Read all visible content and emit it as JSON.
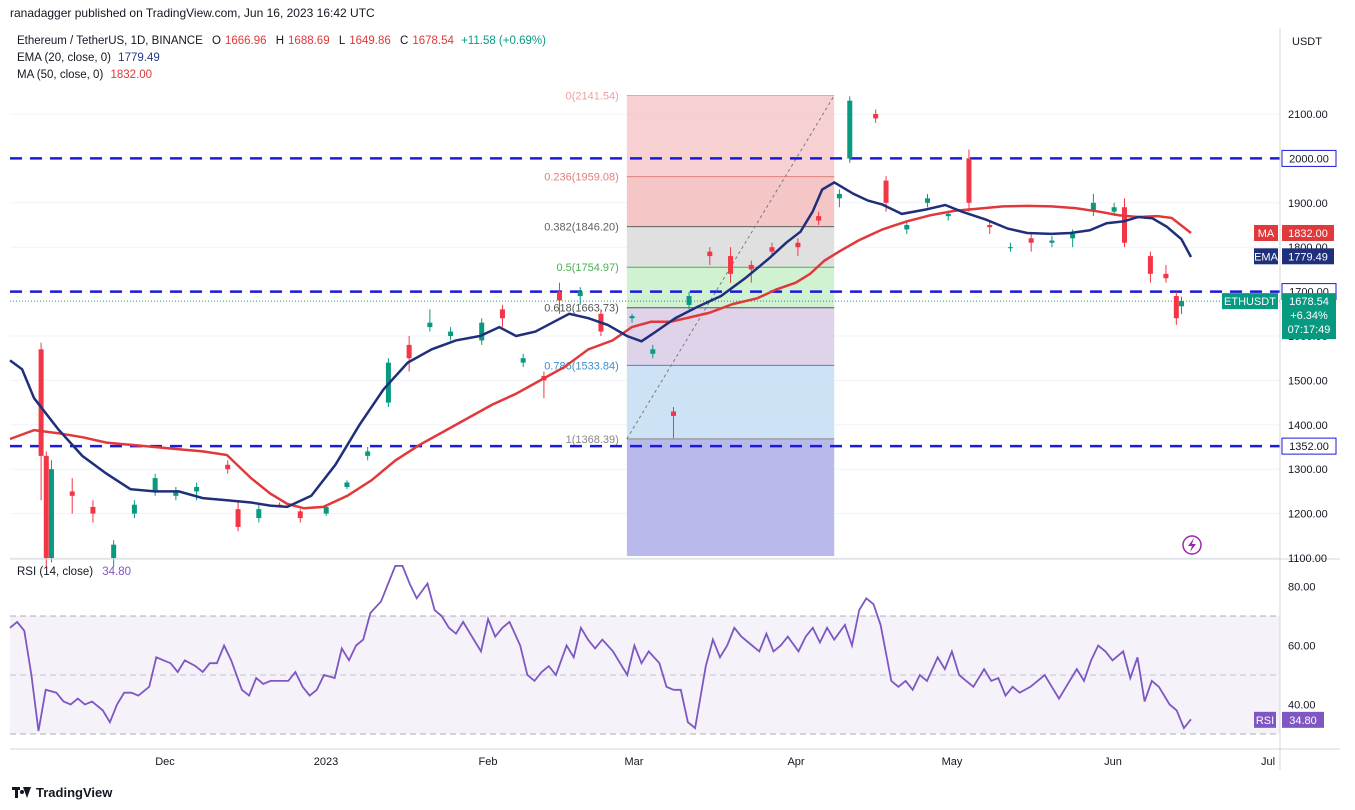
{
  "header": {
    "published": "ranadagger published on TradingView.com, Jun 16, 2023 16:42 UTC"
  },
  "legend": {
    "symbol": "Ethereum / TetherUS, 1D, BINANCE",
    "o": "1666.96",
    "h": "1688.69",
    "l": "1649.86",
    "c": "1678.54",
    "change": "+11.58 (+0.69%)",
    "ema_label": "EMA (20, close, 0)",
    "ema_value": "1779.49",
    "ma_label": "MA (50, close, 0)",
    "ma_value": "1832.00"
  },
  "price_axis": {
    "unit": "USDT",
    "ticks": [
      "1100.00",
      "1200.00",
      "1300.00",
      "1400.00",
      "1500.00",
      "1600.00",
      "1700.00",
      "1800.00",
      "1900.00",
      "2000.00",
      "2100.00"
    ],
    "tick_values": [
      1100,
      1200,
      1300,
      1400,
      1500,
      1600,
      1700,
      1800,
      1900,
      2000,
      2100
    ],
    "badges": [
      {
        "text": "2000.00",
        "value": 2000,
        "color": "#ffffff",
        "bg": "#ffffff",
        "fg": "#131722",
        "kind": "level"
      },
      {
        "text": "1832.00",
        "label": "MA",
        "value": 1832,
        "bg": "#e0383b",
        "fg": "#ffffff",
        "kind": "ind"
      },
      {
        "text": "1779.49",
        "label": "EMA",
        "value": 1779.49,
        "bg": "#1f2f7a",
        "fg": "#ffffff",
        "kind": "ind"
      },
      {
        "text": "1700.00",
        "value": 1700,
        "bg": "#ffffff",
        "fg": "#131722",
        "kind": "level"
      },
      {
        "text": "1352.00",
        "value": 1352,
        "bg": "#ffffff",
        "fg": "#131722",
        "kind": "level"
      }
    ],
    "last": {
      "label": "ETHUSDT",
      "price": "1678.54",
      "pct": "+6.34%",
      "countdown": "07:17:49",
      "bg": "#089981"
    }
  },
  "time_axis": {
    "labels": [
      "Dec",
      "2023",
      "Feb",
      "Mar",
      "Apr",
      "May",
      "Jun",
      "Jul"
    ]
  },
  "rsi": {
    "label": "RSI (14, close)",
    "value": "34.80",
    "ticks": [
      "40.00",
      "60.00",
      "80.00"
    ],
    "tick_values": [
      40,
      60,
      80
    ],
    "band_upper": 70,
    "band_lower": 30,
    "mid": 50,
    "color": "#7e57c2",
    "values": [
      66,
      68,
      65,
      50,
      31,
      45,
      44,
      41,
      40,
      42,
      40,
      41,
      38,
      34,
      40,
      44,
      44,
      43,
      46,
      56,
      55,
      54,
      51,
      55,
      53,
      51,
      54,
      54,
      60,
      55,
      45,
      43,
      49,
      47,
      48,
      48,
      48,
      51,
      46,
      43,
      45,
      50,
      49,
      59,
      55,
      60,
      62,
      71,
      75,
      81,
      87,
      87,
      81,
      76,
      81,
      72,
      70,
      66,
      64,
      68,
      62,
      58,
      69,
      63,
      66,
      68,
      60,
      50,
      48,
      51,
      53,
      50,
      60,
      56,
      66,
      62,
      59,
      62,
      58,
      54,
      50,
      60,
      54,
      58,
      54,
      46,
      45,
      45,
      34,
      32,
      53,
      62,
      56,
      60,
      66,
      63,
      60,
      58,
      64,
      58,
      60,
      63,
      58,
      63,
      66,
      61,
      66,
      62,
      67,
      60,
      72,
      76,
      74,
      67,
      48,
      46,
      48,
      45,
      50,
      48,
      56,
      52,
      58,
      50,
      48,
      46,
      52,
      48,
      49,
      43,
      46,
      44,
      46,
      48,
      50,
      46,
      42,
      46,
      52,
      48,
      55,
      60,
      58,
      55,
      58,
      49,
      56,
      41,
      48,
      46,
      40,
      38,
      32,
      35
    ],
    "index_map": [
      0,
      2,
      4,
      6,
      8,
      10,
      13,
      15,
      17,
      19,
      21,
      23,
      26,
      28,
      30,
      32,
      34,
      36,
      39,
      41,
      43,
      45,
      47,
      49,
      52,
      54,
      56,
      58,
      60,
      62,
      65,
      67,
      69,
      71,
      73,
      75,
      78,
      80,
      82,
      84,
      86,
      88,
      91,
      93,
      95,
      97,
      99,
      101,
      104,
      106,
      108,
      110,
      112,
      114,
      117,
      119,
      121,
      123,
      125,
      127,
      130,
      132,
      134,
      136,
      138,
      140,
      143,
      145,
      147,
      149,
      151,
      153,
      156,
      158,
      160,
      162,
      164,
      166,
      169,
      171,
      173,
      175,
      177,
      179,
      182,
      184,
      186,
      188,
      190,
      192,
      195,
      197,
      199,
      201,
      203,
      205,
      208,
      210,
      212,
      214,
      216,
      218,
      221,
      223,
      225,
      227,
      229,
      231,
      234,
      236,
      238,
      240,
      242,
      244,
      247,
      249,
      251,
      253,
      255,
      257,
      260,
      262,
      264,
      266,
      268,
      270,
      273,
      275,
      277,
      279,
      281,
      283,
      286,
      288,
      290,
      292,
      294,
      296,
      299,
      301,
      303,
      305,
      307,
      309,
      312,
      314,
      316,
      318,
      320,
      322,
      325,
      327,
      329,
      331
    ]
  },
  "chart_data": {
    "type": "candlestick",
    "symbol": "Ethereum / TetherUS",
    "interval": "1D",
    "ylim": [
      1030,
      2160
    ],
    "x_range": [
      "2022-11-02",
      "2023-07-05"
    ],
    "candles": [
      [
        "2022-11-08",
        1570,
        1585,
        1230,
        1330
      ],
      [
        "2022-11-09",
        1330,
        1340,
        1080,
        1100
      ],
      [
        "2022-11-10",
        1100,
        1320,
        1090,
        1300
      ],
      [
        "2022-11-14",
        1250,
        1280,
        1200,
        1240
      ],
      [
        "2022-11-18",
        1215,
        1230,
        1180,
        1200
      ],
      [
        "2022-11-22",
        1100,
        1140,
        1080,
        1130
      ],
      [
        "2022-11-26",
        1200,
        1230,
        1190,
        1220
      ],
      [
        "2022-11-30",
        1250,
        1290,
        1240,
        1280
      ],
      [
        "2022-12-04",
        1240,
        1260,
        1230,
        1250
      ],
      [
        "2022-12-08",
        1250,
        1270,
        1230,
        1260
      ],
      [
        "2022-12-14",
        1310,
        1320,
        1290,
        1300
      ],
      [
        "2022-12-16",
        1210,
        1230,
        1160,
        1170
      ],
      [
        "2022-12-20",
        1190,
        1220,
        1180,
        1210
      ],
      [
        "2022-12-24",
        1220,
        1225,
        1215,
        1218
      ],
      [
        "2022-12-28",
        1205,
        1210,
        1180,
        1190
      ],
      [
        "2023-01-02",
        1200,
        1220,
        1195,
        1215
      ],
      [
        "2023-01-06",
        1260,
        1275,
        1255,
        1270
      ],
      [
        "2023-01-10",
        1330,
        1350,
        1320,
        1340
      ],
      [
        "2023-01-14",
        1450,
        1550,
        1440,
        1540
      ],
      [
        "2023-01-18",
        1580,
        1600,
        1520,
        1550
      ],
      [
        "2023-01-22",
        1620,
        1660,
        1610,
        1630
      ],
      [
        "2023-01-26",
        1600,
        1620,
        1590,
        1610
      ],
      [
        "2023-02-01",
        1590,
        1640,
        1580,
        1630
      ],
      [
        "2023-02-05",
        1660,
        1670,
        1620,
        1640
      ],
      [
        "2023-02-09",
        1540,
        1560,
        1530,
        1550
      ],
      [
        "2023-02-13",
        1510,
        1520,
        1460,
        1500
      ],
      [
        "2023-02-16",
        1700,
        1720,
        1650,
        1680
      ],
      [
        "2023-02-20",
        1690,
        1710,
        1670,
        1700
      ],
      [
        "2023-02-24",
        1650,
        1660,
        1600,
        1610
      ],
      [
        "2023-03-02",
        1640,
        1650,
        1630,
        1645
      ],
      [
        "2023-03-06",
        1560,
        1580,
        1550,
        1570
      ],
      [
        "2023-03-10",
        1430,
        1440,
        1370,
        1420
      ],
      [
        "2023-03-13",
        1670,
        1700,
        1660,
        1690
      ],
      [
        "2023-03-17",
        1790,
        1800,
        1760,
        1780
      ],
      [
        "2023-03-21",
        1780,
        1800,
        1720,
        1740
      ],
      [
        "2023-03-25",
        1760,
        1770,
        1720,
        1750
      ],
      [
        "2023-03-29",
        1800,
        1810,
        1780,
        1790
      ],
      [
        "2023-04-03",
        1810,
        1820,
        1780,
        1800
      ],
      [
        "2023-04-07",
        1870,
        1880,
        1850,
        1860
      ],
      [
        "2023-04-11",
        1910,
        1930,
        1890,
        1920
      ],
      [
        "2023-04-13",
        2000,
        2140,
        1990,
        2130
      ],
      [
        "2023-04-18",
        2100,
        2110,
        2080,
        2090
      ],
      [
        "2023-04-20",
        1950,
        1960,
        1880,
        1900
      ],
      [
        "2023-04-24",
        1840,
        1860,
        1830,
        1850
      ],
      [
        "2023-04-28",
        1900,
        1920,
        1890,
        1910
      ],
      [
        "2023-05-02",
        1870,
        1880,
        1860,
        1875
      ],
      [
        "2023-05-06",
        2000,
        2020,
        1880,
        1900
      ],
      [
        "2023-05-10",
        1850,
        1860,
        1830,
        1845
      ],
      [
        "2023-05-14",
        1800,
        1810,
        1790,
        1800
      ],
      [
        "2023-05-18",
        1820,
        1830,
        1790,
        1810
      ],
      [
        "2023-05-22",
        1810,
        1825,
        1800,
        1815
      ],
      [
        "2023-05-26",
        1820,
        1840,
        1800,
        1830
      ],
      [
        "2023-05-30",
        1880,
        1920,
        1870,
        1900
      ],
      [
        "2023-06-03",
        1880,
        1900,
        1870,
        1890
      ],
      [
        "2023-06-05",
        1890,
        1910,
        1800,
        1810
      ],
      [
        "2023-06-10",
        1780,
        1790,
        1720,
        1740
      ],
      [
        "2023-06-13",
        1740,
        1760,
        1720,
        1730
      ],
      [
        "2023-06-15",
        1690,
        1700,
        1625,
        1640
      ],
      [
        "2023-06-16",
        1666.96,
        1688.69,
        1649.86,
        1678.54
      ]
    ],
    "ema20": [
      [
        0,
        1545
      ],
      [
        5,
        1525
      ],
      [
        10,
        1460
      ],
      [
        20,
        1390
      ],
      [
        30,
        1330
      ],
      [
        40,
        1290
      ],
      [
        50,
        1255
      ],
      [
        60,
        1250
      ],
      [
        70,
        1250
      ],
      [
        80,
        1235
      ],
      [
        90,
        1230
      ],
      [
        100,
        1225
      ],
      [
        108,
        1218
      ],
      [
        115,
        1215
      ],
      [
        125,
        1240
      ],
      [
        135,
        1310
      ],
      [
        145,
        1400
      ],
      [
        155,
        1480
      ],
      [
        165,
        1540
      ],
      [
        175,
        1570
      ],
      [
        185,
        1590
      ],
      [
        195,
        1600
      ],
      [
        203,
        1620
      ],
      [
        210,
        1600
      ],
      [
        218,
        1610
      ],
      [
        225,
        1630
      ],
      [
        232,
        1650
      ],
      [
        240,
        1640
      ],
      [
        248,
        1625
      ],
      [
        256,
        1600
      ],
      [
        262,
        1588
      ],
      [
        268,
        1610
      ],
      [
        276,
        1640
      ],
      [
        285,
        1665
      ],
      [
        295,
        1690
      ],
      [
        305,
        1730
      ],
      [
        315,
        1775
      ],
      [
        322,
        1810
      ],
      [
        328,
        1835
      ],
      [
        333,
        1880
      ],
      [
        337,
        1930
      ],
      [
        342,
        1946
      ],
      [
        350,
        1920
      ],
      [
        356,
        1905
      ],
      [
        362,
        1896
      ],
      [
        370,
        1875
      ],
      [
        380,
        1885
      ],
      [
        388,
        1895
      ],
      [
        395,
        1880
      ],
      [
        405,
        1862
      ],
      [
        414,
        1842
      ],
      [
        422,
        1832
      ],
      [
        432,
        1830
      ],
      [
        440,
        1832
      ],
      [
        448,
        1838
      ],
      [
        455,
        1854
      ],
      [
        462,
        1858
      ],
      [
        468,
        1868
      ],
      [
        474,
        1865
      ],
      [
        480,
        1846
      ],
      [
        486,
        1818
      ],
      [
        490,
        1778
      ]
    ],
    "ma50": [
      [
        0,
        1368
      ],
      [
        10,
        1388
      ],
      [
        20,
        1381
      ],
      [
        30,
        1372
      ],
      [
        40,
        1360
      ],
      [
        50,
        1355
      ],
      [
        60,
        1350
      ],
      [
        70,
        1345
      ],
      [
        80,
        1340
      ],
      [
        90,
        1332
      ],
      [
        100,
        1280
      ],
      [
        108,
        1245
      ],
      [
        115,
        1222
      ],
      [
        122,
        1212
      ],
      [
        130,
        1215
      ],
      [
        140,
        1240
      ],
      [
        150,
        1275
      ],
      [
        160,
        1320
      ],
      [
        170,
        1355
      ],
      [
        180,
        1385
      ],
      [
        190,
        1415
      ],
      [
        200,
        1445
      ],
      [
        210,
        1470
      ],
      [
        220,
        1500
      ],
      [
        230,
        1530
      ],
      [
        240,
        1570
      ],
      [
        250,
        1590
      ],
      [
        258,
        1620
      ],
      [
        266,
        1632
      ],
      [
        274,
        1632
      ],
      [
        282,
        1642
      ],
      [
        290,
        1652
      ],
      [
        300,
        1672
      ],
      [
        310,
        1685
      ],
      [
        318,
        1705
      ],
      [
        326,
        1720
      ],
      [
        332,
        1740
      ],
      [
        338,
        1770
      ],
      [
        344,
        1790
      ],
      [
        352,
        1815
      ],
      [
        362,
        1840
      ],
      [
        372,
        1858
      ],
      [
        382,
        1872
      ],
      [
        392,
        1882
      ],
      [
        402,
        1887
      ],
      [
        412,
        1892
      ],
      [
        422,
        1893
      ],
      [
        432,
        1892
      ],
      [
        442,
        1888
      ],
      [
        452,
        1880
      ],
      [
        460,
        1872
      ],
      [
        468,
        1868
      ],
      [
        476,
        1870
      ],
      [
        482,
        1866
      ],
      [
        490,
        1832
      ]
    ],
    "levels": [
      {
        "value": 2000,
        "label": "2000.00",
        "style": "dashed"
      },
      {
        "value": 1700,
        "label": "1700.00",
        "style": "dashed"
      },
      {
        "value": 1352,
        "label": "1352.00",
        "style": "dashed"
      }
    ],
    "fibonacci": {
      "from": "2023-03-01",
      "to": "2023-04-10",
      "high": 2141.54,
      "low": 1368.39,
      "levels": [
        {
          "ratio": "0",
          "value": 2141.54,
          "label": "0(2141.54)",
          "color": "#f0a0a0",
          "fill": "#f6c9c9"
        },
        {
          "ratio": "0.236",
          "value": 1959.08,
          "label": "0.236(1959.08)",
          "color": "#e08080",
          "fill": "#f2bcbc"
        },
        {
          "ratio": "0.382",
          "value": 1846.2,
          "label": "0.382(1846.20)",
          "color": "#606060",
          "fill": "#dadada"
        },
        {
          "ratio": "0.5",
          "value": 1754.97,
          "label": "0.5(1754.97)",
          "color": "#4caf50",
          "fill": "#c8f0c8"
        },
        {
          "ratio": "0.618",
          "value": 1663.73,
          "label": "0.618(1663.73)",
          "color": "#555555",
          "fill": "#d9cbe6"
        },
        {
          "ratio": "0.786",
          "value": 1533.84,
          "label": "0.786(1533.84)",
          "color": "#3a8fd0",
          "fill": "#c6ddf3"
        },
        {
          "ratio": "1",
          "value": 1368.39,
          "label": "1(1368.39)",
          "color": "#888888",
          "fill": "#dcdcdc"
        }
      ],
      "extension_fill": "#b9b9ec"
    },
    "x_labels": [
      "Dec",
      "2023",
      "Feb",
      "Mar",
      "Apr",
      "May",
      "Jun",
      "Jul"
    ]
  }
}
